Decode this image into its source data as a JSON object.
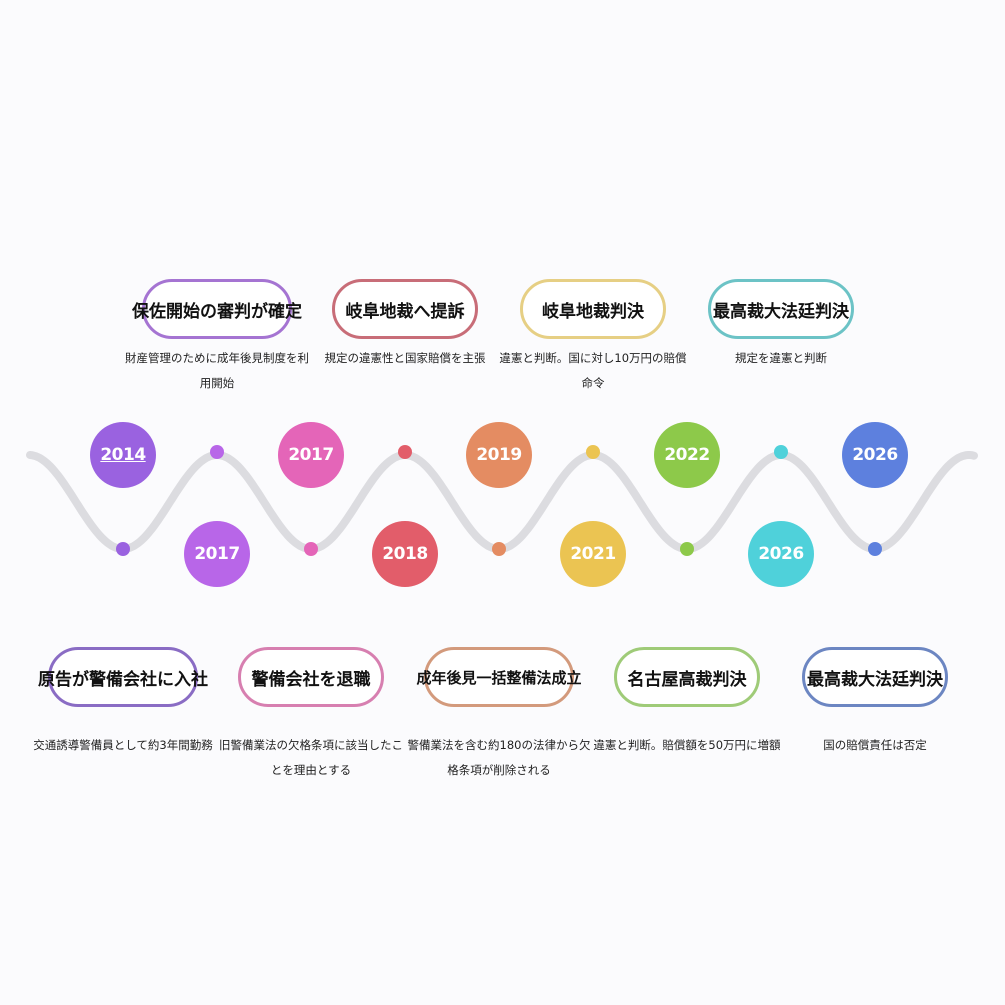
{
  "events": [
    {
      "year": "2014",
      "title": "原告が警備会社に入社",
      "caption": "交通誘導警備員として約3年間勤務",
      "color": "#9a62e0",
      "border": "#8a6cc4",
      "side": "bottom"
    },
    {
      "year": "2017",
      "title": "保佐開始の審判が確定",
      "caption": "財産管理のために成年後見制度を利用開始",
      "color": "#b866e8",
      "border": "#a574d2",
      "side": "top"
    },
    {
      "year": "2017",
      "title": "警備会社を退職",
      "caption": "旧警備業法の欠格条項に該当したことを理由とする",
      "color": "#e465b8",
      "border": "#d77fb0",
      "side": "bottom"
    },
    {
      "year": "2018",
      "title": "岐阜地裁へ提訴",
      "caption": "規定の違憲性と国家賠償を主張",
      "color": "#e25d6a",
      "border": "#c86d78",
      "side": "top"
    },
    {
      "year": "2019",
      "title": "成年後見一括整備法成立",
      "caption": "警備業法を含む約180の法律から欠格条項が削除される",
      "color": "#e48c62",
      "border": "#d39a7c",
      "side": "bottom"
    },
    {
      "year": "2021",
      "title": "岐阜地裁判決",
      "caption": "違憲と判断。国に対し10万円の賠償命令",
      "color": "#ebc452",
      "border": "#e6cf84",
      "side": "top"
    },
    {
      "year": "2022",
      "title": "名古屋高裁判決",
      "caption": "違憲と判断。賠償額を50万円に増額",
      "color": "#8dc94a",
      "border": "#9fcb78",
      "side": "bottom"
    },
    {
      "year": "2026",
      "title": "最高裁大法廷判決",
      "caption": "規定を違憲と判断",
      "color": "#4fd1da",
      "border": "#6cc3c6",
      "side": "top"
    },
    {
      "year": "2026",
      "title": "最高裁大法廷判決",
      "caption": "国の賠償責任は否定",
      "color": "#5d80de",
      "border": "#6c86c2",
      "side": "bottom"
    }
  ],
  "line_color": "#dcdce0"
}
